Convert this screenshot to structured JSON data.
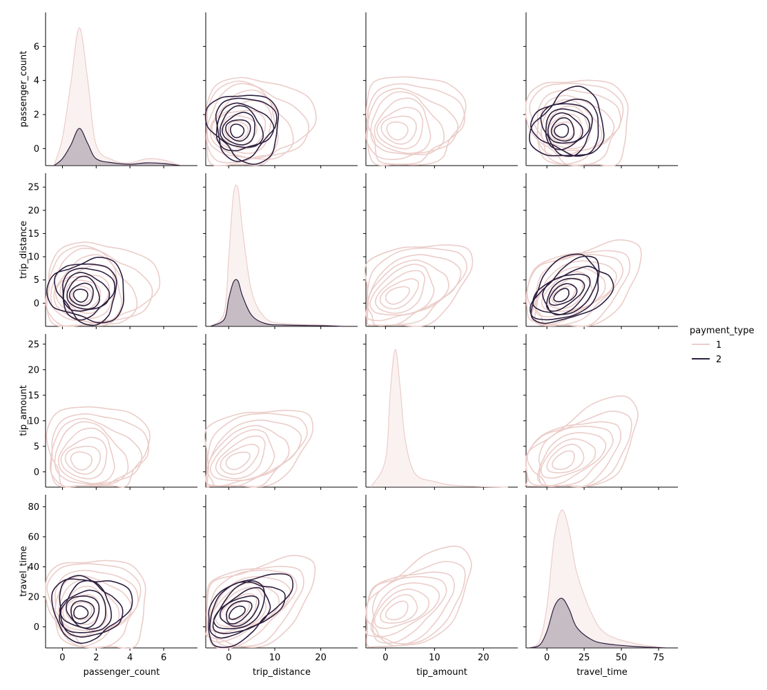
{
  "chart_data": {
    "type": "pairplot-kde",
    "variables": [
      "passenger_count",
      "trip_distance",
      "tip_amount",
      "travel_time"
    ],
    "legend": {
      "title": "payment_type",
      "placement": "right",
      "entries": [
        {
          "label": "1",
          "color": "#ebcdc9"
        },
        {
          "label": "2",
          "color": "#2d1e3e"
        }
      ]
    },
    "axes": {
      "passenger_count": {
        "range": [
          -1,
          8
        ],
        "ticks": [
          0,
          2,
          4,
          6
        ],
        "tick_labels": [
          "0",
          "2",
          "4",
          "6"
        ]
      },
      "trip_distance": {
        "range": [
          -5,
          28
        ],
        "ticks": [
          0,
          10,
          20
        ],
        "tick_labels": [
          "0",
          "10",
          "20"
        ]
      },
      "tip_amount": {
        "range": [
          -4,
          27
        ],
        "ticks": [
          0,
          10,
          20
        ],
        "tick_labels": [
          "0",
          "10",
          "20"
        ]
      },
      "travel_time": {
        "range": [
          -14,
          88
        ],
        "ticks": [
          0,
          25,
          50,
          75
        ],
        "tick_labels": [
          "0",
          "25",
          "50",
          "75"
        ]
      }
    },
    "row_axes": {
      "passenger_count": {
        "range": [
          -1,
          8
        ],
        "ticks": [
          0,
          2,
          4,
          6
        ],
        "tick_labels": [
          "0",
          "2",
          "4",
          "6"
        ]
      },
      "trip_distance": {
        "range": [
          -5,
          28
        ],
        "ticks": [
          0,
          5,
          10,
          15,
          20,
          25
        ],
        "tick_labels": [
          "0",
          "5",
          "10",
          "15",
          "20",
          "25"
        ]
      },
      "tip_amount": {
        "range": [
          -3,
          27
        ],
        "ticks": [
          0,
          5,
          10,
          15,
          20,
          25
        ],
        "tick_labels": [
          "0",
          "5",
          "10",
          "15",
          "20",
          "25"
        ]
      },
      "travel_time": {
        "range": [
          -14,
          88
        ],
        "ticks": [
          0,
          20,
          40,
          60,
          80
        ],
        "tick_labels": [
          "0",
          "20",
          "40",
          "60",
          "80"
        ]
      }
    },
    "diagonal_densities": {
      "passenger_count": {
        "x": [
          -0.5,
          0,
          0.5,
          1,
          1.5,
          2,
          3,
          4,
          5,
          6,
          7
        ],
        "series_1": [
          0,
          0.2,
          0.6,
          1.0,
          0.62,
          0.15,
          0.04,
          0.02,
          0.05,
          0.04,
          0
        ],
        "series_2": [
          0,
          0.05,
          0.15,
          0.27,
          0.16,
          0.05,
          0.02,
          0.01,
          0.02,
          0.015,
          0
        ]
      },
      "trip_distance": {
        "x": [
          -4,
          -1,
          0,
          1,
          2,
          3,
          5,
          8,
          12,
          20,
          25
        ],
        "series_1": [
          0,
          0.1,
          0.5,
          0.95,
          1.0,
          0.7,
          0.25,
          0.06,
          0.02,
          0.01,
          0
        ],
        "series_2": [
          0,
          0.05,
          0.2,
          0.32,
          0.33,
          0.22,
          0.08,
          0.02,
          0.01,
          0.005,
          0
        ]
      },
      "tip_amount": {
        "x": [
          -3,
          0,
          1,
          2,
          3,
          4,
          6,
          10,
          15,
          25
        ],
        "series_1": [
          0,
          0.2,
          0.7,
          1.0,
          0.72,
          0.35,
          0.1,
          0.04,
          0.01,
          0
        ],
        "series_2": [
          0,
          0,
          0,
          0,
          0,
          0,
          0,
          0,
          0,
          0
        ]
      },
      "travel_time": {
        "x": [
          -12,
          -5,
          0,
          5,
          10,
          15,
          20,
          30,
          40,
          60,
          80
        ],
        "series_1": [
          0,
          0.05,
          0.3,
          0.8,
          1.0,
          0.85,
          0.55,
          0.25,
          0.1,
          0.03,
          0
        ],
        "series_2": [
          0,
          0.02,
          0.12,
          0.3,
          0.36,
          0.28,
          0.15,
          0.06,
          0.03,
          0.01,
          0
        ]
      }
    },
    "bivariate_modes": {
      "series_1": {
        "passenger_count": 1.0,
        "trip_distance": 1.5,
        "tip_amount": 2.0,
        "travel_time": 10
      },
      "series_2": {
        "passenger_count": 1.0,
        "trip_distance": 1.5,
        "tip_amount": null,
        "travel_time": 9
      }
    }
  }
}
